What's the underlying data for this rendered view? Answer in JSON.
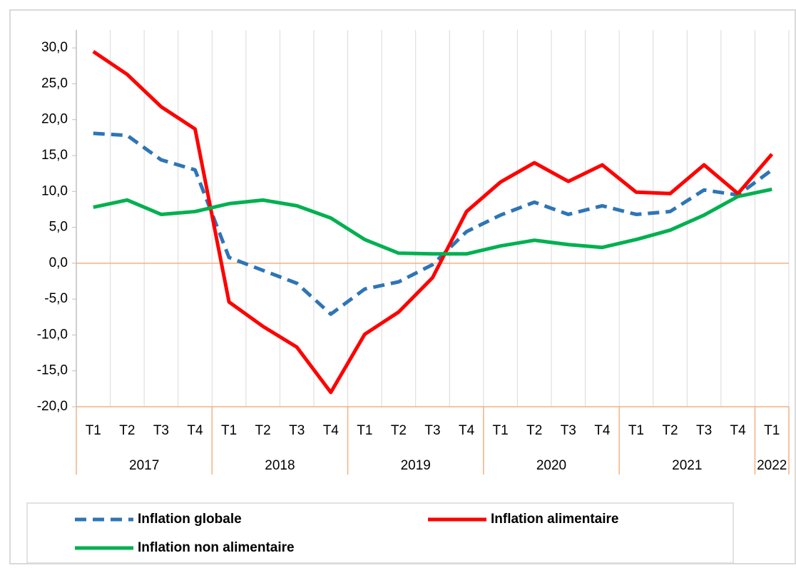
{
  "chart_data": {
    "type": "line",
    "categories": [
      "T1",
      "T2",
      "T3",
      "T4",
      "T1",
      "T2",
      "T3",
      "T4",
      "T1",
      "T2",
      "T3",
      "T4",
      "T1",
      "T2",
      "T3",
      "T4",
      "T1",
      "T2",
      "T3",
      "T4",
      "T1"
    ],
    "category_groups": [
      "2017",
      "2017",
      "2017",
      "2017",
      "2018",
      "2018",
      "2018",
      "2018",
      "2019",
      "2019",
      "2019",
      "2019",
      "2020",
      "2020",
      "2020",
      "2020",
      "2021",
      "2021",
      "2021",
      "2021",
      "2022"
    ],
    "series": [
      {
        "name": "Inflation globale",
        "color": "#2e75b6",
        "dash": true,
        "values": [
          18.1,
          17.8,
          14.4,
          13.0,
          0.8,
          -1.0,
          -2.8,
          -7.1,
          -3.6,
          -2.6,
          -0.2,
          4.4,
          6.7,
          8.5,
          6.8,
          8.0,
          6.8,
          7.2,
          10.2,
          9.5,
          13.0
        ]
      },
      {
        "name": "Inflation alimentaire",
        "color": "#ff0000",
        "dash": false,
        "values": [
          29.5,
          26.3,
          21.8,
          18.7,
          -5.4,
          -8.8,
          -11.7,
          -18.0,
          -9.9,
          -6.8,
          -2.0,
          7.2,
          11.3,
          14.0,
          11.4,
          13.7,
          9.9,
          9.7,
          13.7,
          9.7,
          15.2
        ]
      },
      {
        "name": "Inflation non alimentaire",
        "color": "#00b050",
        "dash": false,
        "values": [
          7.8,
          8.8,
          6.8,
          7.2,
          8.3,
          8.8,
          8.0,
          6.3,
          3.3,
          1.4,
          1.3,
          1.3,
          2.4,
          3.2,
          2.6,
          2.2,
          3.3,
          4.6,
          6.7,
          9.3,
          10.3
        ]
      }
    ],
    "ylim": [
      -20,
      32.5
    ],
    "yticks": [
      {
        "value": -20,
        "label": "-20,0"
      },
      {
        "value": -15,
        "label": "-15,0"
      },
      {
        "value": -10,
        "label": "-10,0"
      },
      {
        "value": -5,
        "label": "-5,0"
      },
      {
        "value": 0,
        "label": "0,0"
      },
      {
        "value": 5,
        "label": "5,0"
      },
      {
        "value": 10,
        "label": "10,0"
      },
      {
        "value": 15,
        "label": "15,0"
      },
      {
        "value": 20,
        "label": "20,0"
      },
      {
        "value": 25,
        "label": "25,0"
      },
      {
        "value": 30,
        "label": "30,0"
      }
    ],
    "grid": "vertical",
    "legend": "bottom"
  }
}
